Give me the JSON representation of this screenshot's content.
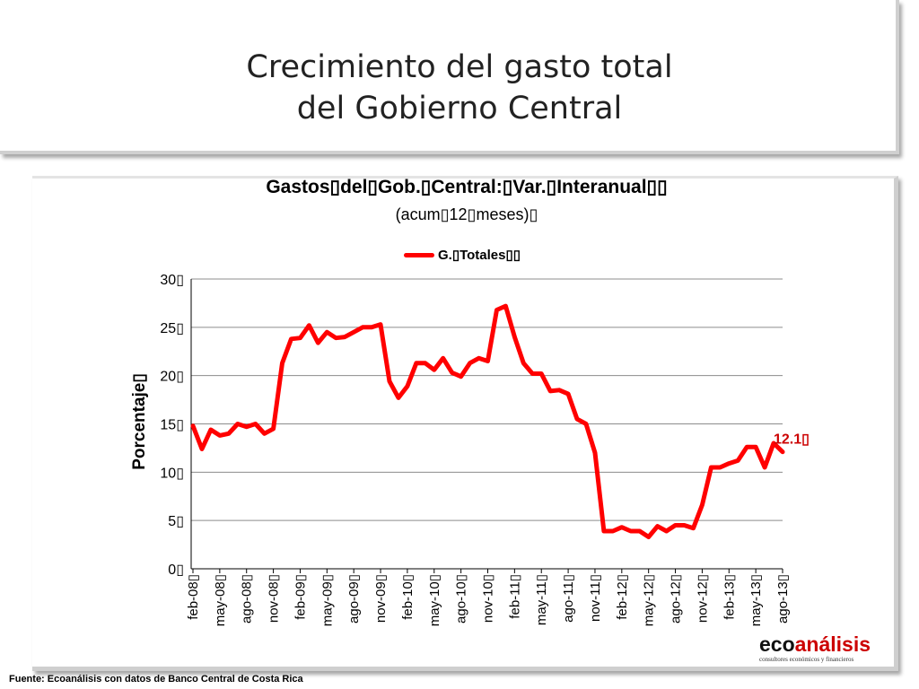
{
  "slide": {
    "title_line1": "Crecimiento del gasto total",
    "title_line2": "del Gobierno Central"
  },
  "chart_data": {
    "type": "line",
    "title": "Gastos▯del▯Gob.▯Central:▯Var.▯Interanual▯▯",
    "subtitle": "(acum▯12▯meses)▯",
    "ylabel": "Porcentaje▯",
    "xlabel": "",
    "ylim": [
      0,
      30
    ],
    "y_ticks": [
      "0▯",
      "5▯",
      "10▯",
      "15▯",
      "20▯",
      "25▯",
      "30▯"
    ],
    "grid": true,
    "legend_position": "top",
    "x_tick_labels": [
      "feb-08▯",
      "may-08▯",
      "ago-08▯",
      "nov-08▯",
      "feb-09▯",
      "may-09▯",
      "ago-09▯",
      "nov-09▯",
      "feb-10▯",
      "may-10▯",
      "ago-10▯",
      "nov-10▯",
      "feb-11▯",
      "may-11▯",
      "ago-11▯",
      "nov-11▯",
      "feb-12▯",
      "may-12▯",
      "ago-12▯",
      "nov-12▯",
      "feb-13▯",
      "may-13▯",
      "ago-13▯"
    ],
    "series": [
      {
        "name": "G.▯Totales▯▯",
        "color": "#ff0000",
        "x": [
          "feb-08",
          "mar-08",
          "abr-08",
          "may-08",
          "jun-08",
          "jul-08",
          "ago-08",
          "sep-08",
          "oct-08",
          "nov-08",
          "dic-08",
          "ene-09",
          "feb-09",
          "mar-09",
          "abr-09",
          "may-09",
          "jun-09",
          "jul-09",
          "ago-09",
          "sep-09",
          "oct-09",
          "nov-09",
          "dic-09",
          "ene-10",
          "feb-10",
          "mar-10",
          "abr-10",
          "may-10",
          "jun-10",
          "jul-10",
          "ago-10",
          "sep-10",
          "oct-10",
          "nov-10",
          "dic-10",
          "ene-11",
          "feb-11",
          "mar-11",
          "abr-11",
          "may-11",
          "jun-11",
          "jul-11",
          "ago-11",
          "sep-11",
          "oct-11",
          "nov-11",
          "dic-11",
          "ene-12",
          "feb-12",
          "mar-12",
          "abr-12",
          "may-12",
          "jun-12",
          "jul-12",
          "ago-12",
          "sep-12",
          "oct-12",
          "nov-12",
          "dic-12",
          "ene-13",
          "feb-13",
          "mar-13",
          "abr-13",
          "may-13",
          "jun-13",
          "jul-13",
          "ago-13"
        ],
        "values": [
          14.8,
          12.4,
          14.4,
          13.8,
          14.0,
          15.0,
          14.7,
          15.0,
          14.0,
          14.5,
          21.3,
          23.8,
          23.9,
          25.2,
          23.4,
          24.5,
          23.9,
          24.0,
          24.5,
          25.0,
          25.0,
          25.3,
          19.4,
          17.7,
          18.9,
          21.3,
          21.3,
          20.6,
          21.8,
          20.3,
          19.9,
          21.3,
          21.8,
          21.5,
          26.8,
          27.2,
          24.0,
          21.3,
          20.2,
          20.2,
          18.4,
          18.5,
          18.1,
          15.5,
          15.0,
          12.0,
          3.9,
          3.9,
          4.3,
          3.9,
          3.9,
          3.3,
          4.4,
          3.9,
          4.5,
          4.5,
          4.2,
          6.6,
          10.5,
          10.5,
          10.9,
          11.2,
          12.6,
          12.6,
          10.5,
          13.0,
          12.1
        ]
      }
    ],
    "annotations": [
      {
        "text": "12.1▯",
        "color": "#cc0000",
        "at": "ago-13"
      }
    ]
  },
  "logo": {
    "text_eco": "eco",
    "text_analisis": "análisis",
    "tagline": "consultores económicos y financieros"
  },
  "footer": {
    "source": "Fuente: Ecoanálisis con datos de Banco  Central de Costa Rica"
  }
}
